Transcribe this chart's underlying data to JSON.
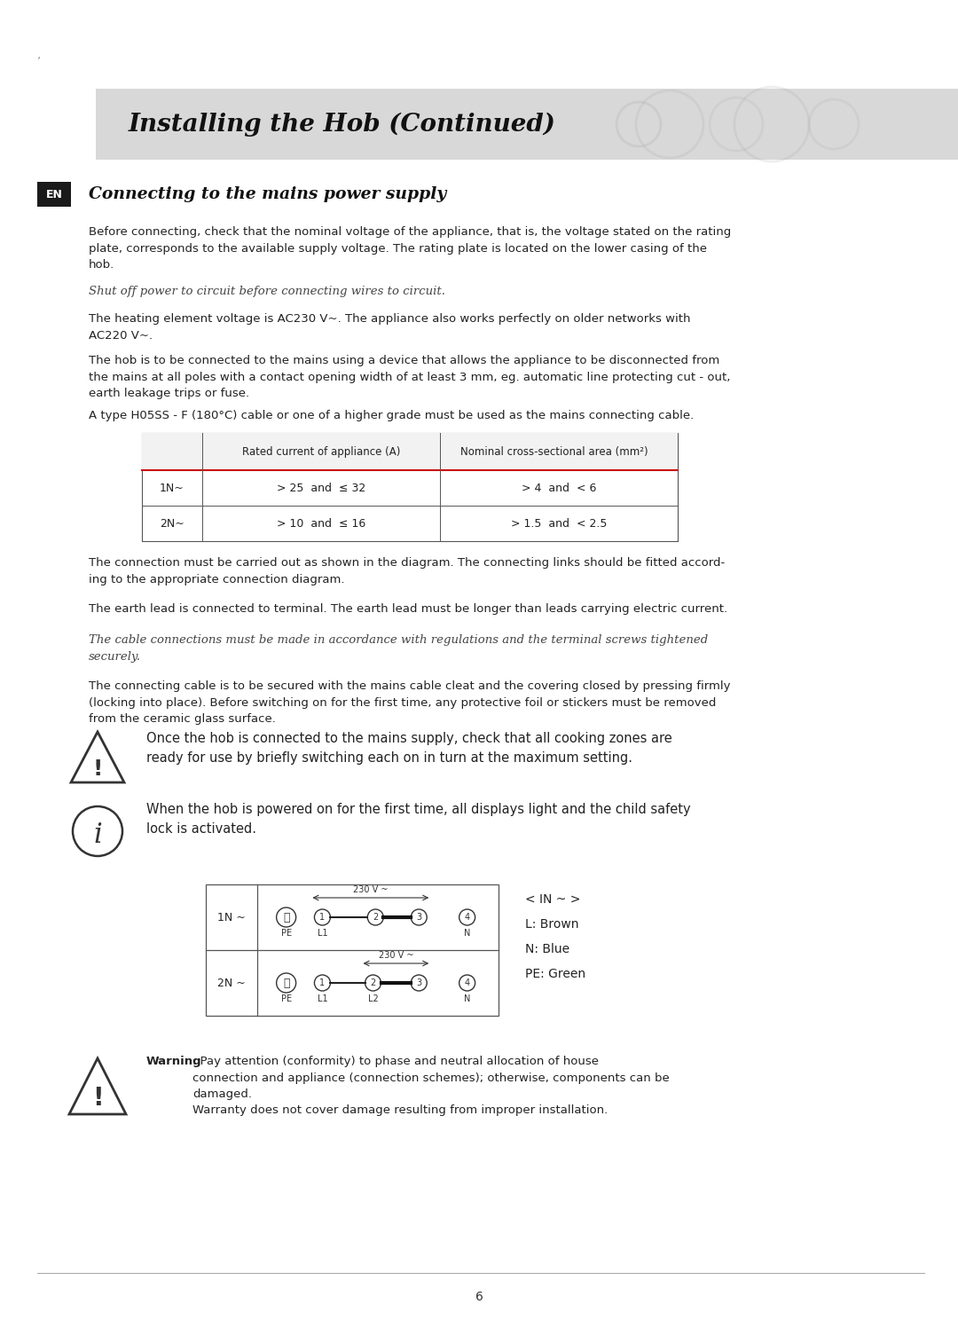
{
  "page_bg": "#ffffff",
  "header_bg": "#d8d8d8",
  "header_text": "Installing the Hob (Continued)",
  "en_box_bg": "#1a1a1a",
  "en_box_text": "EN",
  "section_title": "Connecting to the mains power supply",
  "para1": "Before connecting, check that the nominal voltage of the appliance, that is, the voltage stated on the rating\nplate, corresponds to the available supply voltage. The rating plate is located on the lower casing of the\nhob.",
  "para_italic1": "Shut off power to circuit before connecting wires to circuit.",
  "para2": "The heating element voltage is AC230 V~. The appliance also works perfectly on older networks with\nAC220 V~.",
  "para3": "The hob is to be connected to the mains using a device that allows the appliance to be disconnected from\nthe mains at all poles with a contact opening width of at least 3 mm, eg. automatic line protecting cut - out,\nearth leakage trips or fuse.",
  "para4": "A type H05SS - F (180°C) cable or one of a higher grade must be used as the mains connecting cable.",
  "table_header_col1": "Rated current of appliance (A)",
  "table_header_col2": "Nominal cross-sectional area (mm",
  "table_row1_label": "1N~",
  "table_row1_col1": "> 25  and  ≤ 32",
  "table_row1_col2": "> 4  and  < 6",
  "table_row2_label": "2N~",
  "table_row2_col1": "> 10  and  ≤ 16",
  "table_row2_col2": "> 1.5  and  < 2.5",
  "para5": "The connection must be carried out as shown in the diagram. The connecting links should be fitted accord-\ning to the appropriate connection diagram.",
  "para6": "The earth lead is connected to terminal. The earth lead must be longer than leads carrying electric current.",
  "para_italic2": "The cable connections must be made in accordance with regulations and the terminal screws tightened\nsecurely.",
  "para7": "The connecting cable is to be secured with the mains cable cleat and the covering closed by pressing firmly\n(locking into place). Before switching on for the first time, any protective foil or stickers must be removed\nfrom the ceramic glass surface.",
  "warning1_text": "Once the hob is connected to the mains supply, check that all cooking zones are\nready for use by briefly switching each on in turn at the maximum setting.",
  "info_text": "When the hob is powered on for the first time, all displays light and the child safety\nlock is activated.",
  "warning2_text_bold": "Warning",
  "warning2_text": ": Pay attention (conformity) to phase and neutral allocation of house\nconnection and appliance (connection schemes); otherwise, components can be\ndamaged.\nWarranty does not cover damage resulting from improper installation.",
  "page_number": "6",
  "font_size_body": 9.5,
  "font_size_header": 20,
  "font_size_section": 13.5,
  "text_color": "#222222",
  "italic_color": "#555555"
}
